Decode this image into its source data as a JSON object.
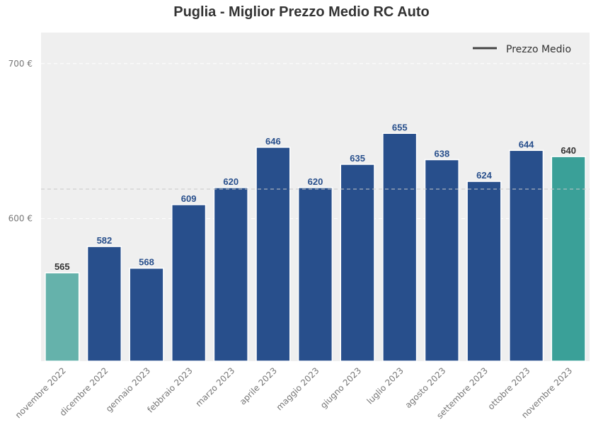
{
  "chart_data": {
    "type": "bar",
    "title": "Puglia - Miglior Prezzo Medio RC Auto",
    "xlabel": "",
    "ylabel": "",
    "categories": [
      "novembre 2022",
      "dicembre 2022",
      "gennaio 2023",
      "febbraio 2023",
      "marzo 2023",
      "aprile 2023",
      "maggio 2023",
      "giugno 2023",
      "luglio 2023",
      "agosto 2023",
      "settembre 2023",
      "ottobre 2023",
      "novembre 2023"
    ],
    "values": [
      565,
      582,
      568,
      609,
      620,
      646,
      620,
      635,
      655,
      638,
      624,
      644,
      640
    ],
    "data_labels": [
      "565",
      "582",
      "568",
      "609",
      "620",
      "646",
      "620",
      "635",
      "655",
      "638",
      "624",
      "644",
      "640"
    ],
    "ylim": [
      508,
      720
    ],
    "yticks": [
      600,
      700
    ],
    "ytick_labels": [
      "600 €",
      "700 €"
    ],
    "mean_line": 619,
    "legend": {
      "label": "Prezzo Medio",
      "placement": "top-right"
    },
    "grid": true,
    "colors": {
      "bar": "#284f8c",
      "first_bar": "#65b2ab",
      "last_bar": "#3aa098",
      "label_dark": "#333333",
      "label_bar": "#284f8c",
      "mean_line": "#c8c8c8",
      "plot_bg": "#efefef",
      "legend_line": "#444444"
    }
  }
}
